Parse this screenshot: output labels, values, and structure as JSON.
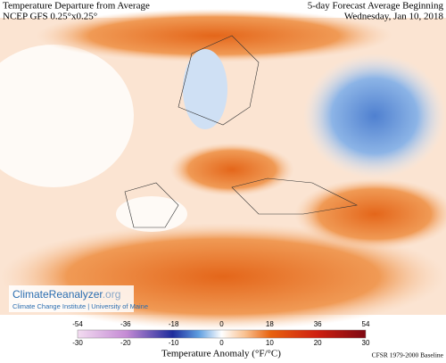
{
  "header": {
    "left": [
      "Temperature Departure from Average",
      "NCEP GFS 0.25°x0.25°"
    ],
    "right": [
      "5-day Forecast Average Beginning",
      "Wednesday, Jan 10, 2018"
    ]
  },
  "logo": {
    "name": "ClimateReanalyzer",
    "suffix": ".org",
    "subtitle": "Climate Change Institute | University of Maine"
  },
  "colorbar": {
    "fahrenheit_ticks": [
      -54,
      -36,
      -18,
      0,
      18,
      36,
      54
    ],
    "celsius_ticks": [
      -30,
      -20,
      -10,
      0,
      10,
      20,
      30
    ],
    "label": "Temperature Anomaly (°F/°C)",
    "baseline": "CFSR 1979-2000 Baseline"
  }
}
